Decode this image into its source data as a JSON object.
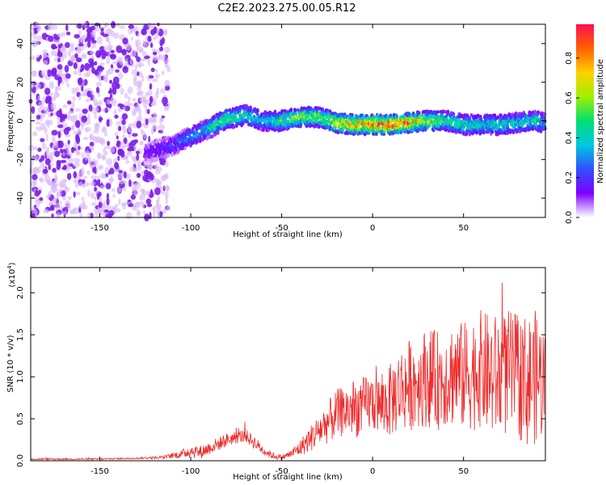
{
  "title": "C2E2.2023.275.00.05.R12",
  "colors": {
    "snr_line": "#ee2b2b",
    "spectrogram_weak": "#d8b8f5",
    "spectrogram_mid": "#7b1fe8",
    "background": "#ffffff",
    "axis": "#000000"
  },
  "colorbar": {
    "label": "Normalized spectral amplitude",
    "ticks": [
      "0.0",
      "0.2",
      "0.4",
      "0.6",
      "0.8"
    ],
    "tick_values": [
      0.0,
      0.2,
      0.4,
      0.6,
      0.8
    ],
    "range": [
      0.0,
      0.97
    ],
    "colormap": [
      "#ffffff",
      "#8000ff",
      "#3050ff",
      "#00c8e0",
      "#00e070",
      "#a0f000",
      "#ffd000",
      "#ff6000",
      "#ff1050"
    ]
  },
  "chart_data": [
    {
      "type": "heatmap",
      "name": "spectrogram",
      "xlabel": "Height of straight line (km)",
      "ylabel": "Frequency (Hz)",
      "xlim": [
        -188,
        95
      ],
      "ylim": [
        -50,
        50
      ],
      "xticks": [
        -150,
        -100,
        -50,
        0,
        50
      ],
      "xtick_labels": [
        "-150",
        "-100",
        "-50",
        "0",
        "50"
      ],
      "yticks": [
        -40,
        -20,
        0,
        20,
        40
      ],
      "ytick_labels": [
        "-40",
        "-20",
        "0",
        "20",
        "40"
      ],
      "ridge": {
        "description_points_x": [
          -125,
          -110,
          -100,
          -90,
          -80,
          -70,
          -60,
          -50,
          -40,
          -30,
          -20,
          -10,
          0,
          10,
          20,
          30,
          40,
          50,
          60,
          70,
          80,
          90,
          95
        ],
        "frequency_hz": [
          -17,
          -13,
          -8,
          -4,
          1,
          3,
          0,
          0,
          2,
          2,
          -1,
          -2,
          -2,
          -2,
          -1,
          0,
          0,
          -2,
          -2,
          -2,
          -1,
          0,
          -1
        ],
        "peak_amplitude": [
          0.15,
          0.25,
          0.35,
          0.45,
          0.6,
          0.5,
          0.4,
          0.55,
          0.65,
          0.6,
          0.75,
          0.85,
          0.9,
          0.95,
          0.9,
          0.7,
          0.55,
          0.5,
          0.45,
          0.5,
          0.45,
          0.5,
          0.4
        ]
      },
      "noise_region_x": [
        -188,
        -112
      ]
    },
    {
      "type": "line",
      "name": "snr",
      "xlabel": "Height of straight line (km)",
      "ylabel": "SNR (10 * v/v)",
      "multiplier_label": "(x10",
      "multiplier_exp": "4",
      "multiplier_close": ")",
      "xlim": [
        -188,
        95
      ],
      "ylim": [
        0,
        2.3
      ],
      "xticks": [
        -150,
        -100,
        -50,
        0,
        50
      ],
      "xtick_labels": [
        "-150",
        "-100",
        "-50",
        "0",
        "50"
      ],
      "yticks": [
        0,
        0.5,
        1.0,
        1.5,
        2.0
      ],
      "ytick_labels": [
        "0.0",
        "0.5",
        "1.0",
        "1.5",
        "2.0"
      ],
      "series": [
        {
          "x": [
            -188,
            -170,
            -150,
            -130,
            -115,
            -105,
            -100,
            -95,
            -90,
            -85,
            -80,
            -75,
            -70,
            -65,
            -60,
            -55,
            -50,
            -45,
            -40,
            -35,
            -30,
            -25,
            -20,
            -15,
            -10,
            -5,
            0,
            5,
            10,
            15,
            20,
            25,
            30,
            35,
            40,
            45,
            50,
            55,
            60,
            65,
            70,
            75,
            80,
            85,
            90,
            95
          ],
          "y": [
            0.02,
            0.02,
            0.02,
            0.03,
            0.04,
            0.08,
            0.12,
            0.1,
            0.15,
            0.2,
            0.25,
            0.28,
            0.3,
            0.22,
            0.12,
            0.06,
            0.04,
            0.08,
            0.15,
            0.25,
            0.35,
            0.45,
            0.55,
            0.6,
            0.62,
            0.65,
            0.7,
            0.65,
            0.72,
            0.85,
            0.9,
            0.95,
            1.0,
            0.95,
            1.0,
            1.05,
            1.0,
            1.05,
            1.1,
            1.0,
            1.0,
            1.05,
            1.0,
            0.95,
            1.0,
            0.95
          ],
          "amplitude": [
            0.01,
            0.01,
            0.01,
            0.01,
            0.02,
            0.05,
            0.08,
            0.08,
            0.08,
            0.08,
            0.08,
            0.08,
            0.08,
            0.08,
            0.06,
            0.04,
            0.03,
            0.05,
            0.1,
            0.15,
            0.2,
            0.25,
            0.3,
            0.3,
            0.35,
            0.35,
            0.35,
            0.35,
            0.45,
            0.5,
            0.55,
            0.55,
            0.6,
            0.6,
            0.6,
            0.65,
            0.65,
            0.7,
            0.7,
            0.75,
            0.75,
            0.75,
            0.75,
            0.8,
            0.8,
            0.7
          ]
        }
      ]
    }
  ]
}
